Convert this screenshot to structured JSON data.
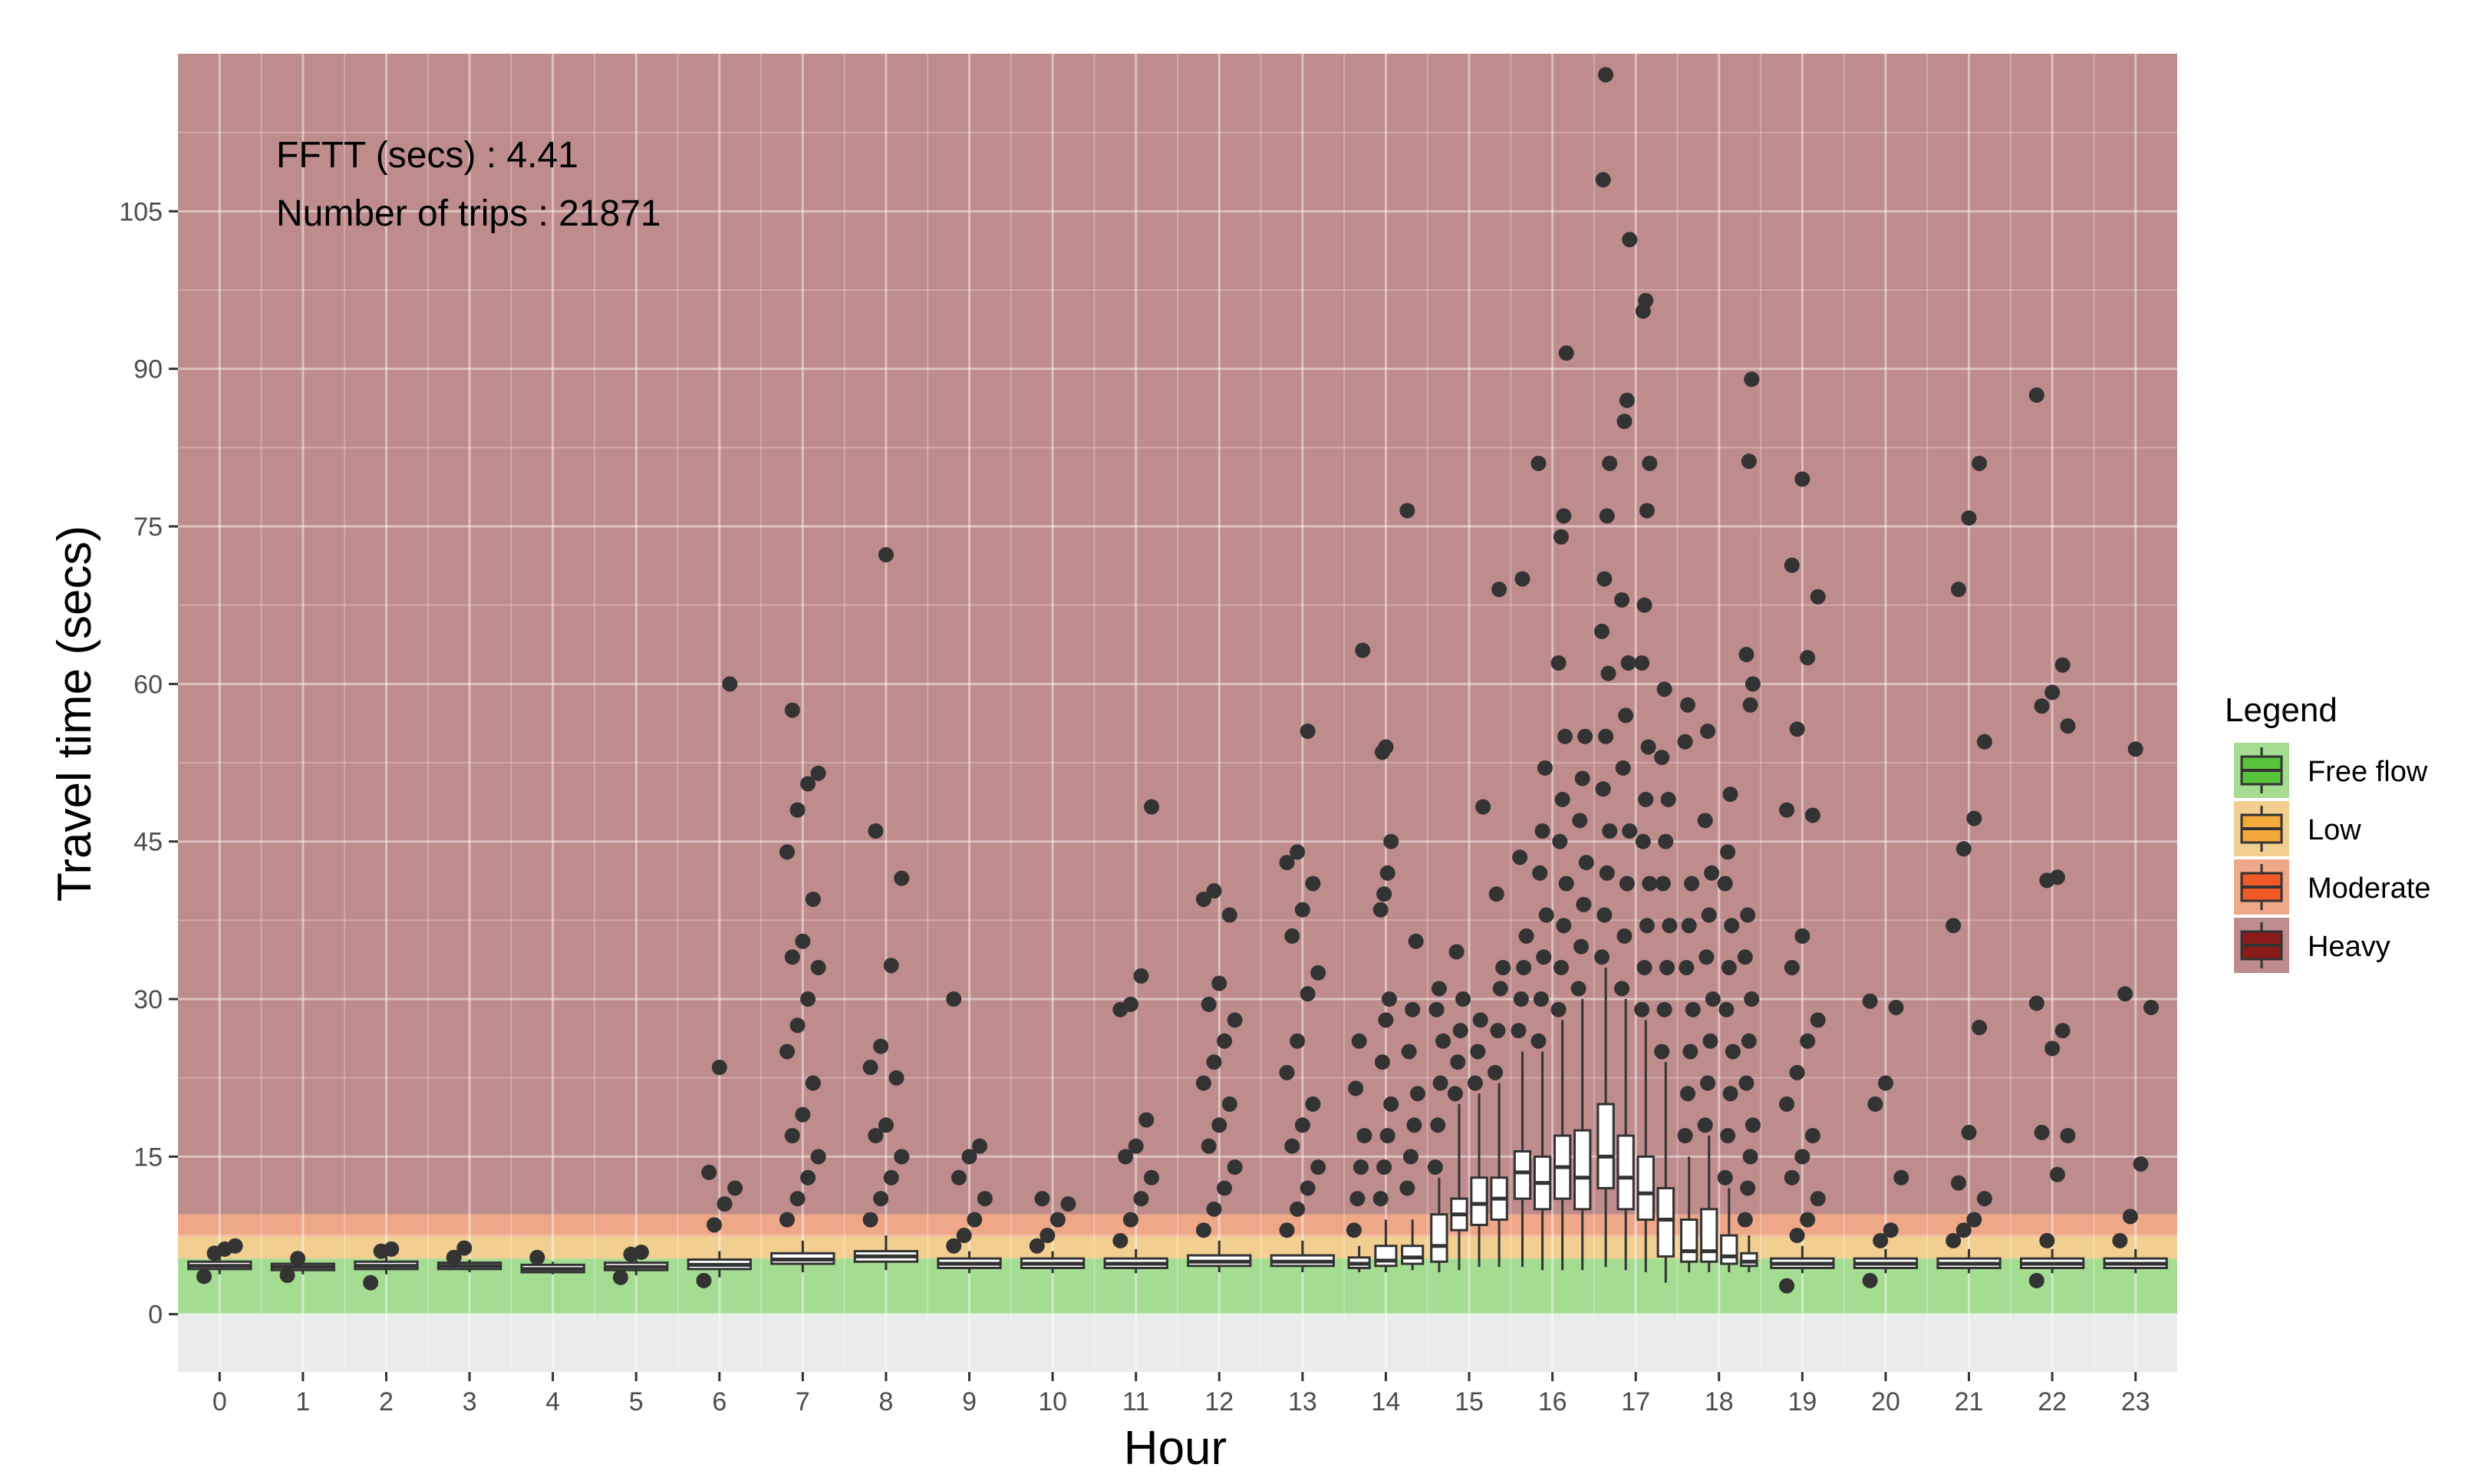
{
  "chart_data": {
    "type": "box",
    "title": "",
    "xlabel": "Hour",
    "ylabel": "Travel time (secs)",
    "ylim": [
      -5.5,
      120
    ],
    "yticks": [
      0,
      15,
      30,
      45,
      60,
      75,
      90,
      105
    ],
    "categories": [
      "0",
      "1",
      "2",
      "3",
      "4",
      "5",
      "6",
      "7",
      "8",
      "9",
      "10",
      "11",
      "12",
      "13",
      "14",
      "15",
      "16",
      "17",
      "18",
      "19",
      "20",
      "21",
      "22",
      "23"
    ],
    "annotations": [
      "FFTT (secs) : 4.41",
      "Number of trips : 21871"
    ],
    "grid": true,
    "legend": {
      "title": "Legend",
      "position": "right",
      "items": [
        {
          "label": "Free flow",
          "color": "#57c43b"
        },
        {
          "label": "Low",
          "color": "#f5a93a"
        },
        {
          "label": "Moderate",
          "color": "#f05a28"
        },
        {
          "label": "Heavy",
          "color": "#8b1a1a"
        }
      ]
    },
    "bands": [
      {
        "name": "Free flow",
        "from": 0,
        "to": 5.3,
        "color": "#a4dc92"
      },
      {
        "name": "Low",
        "from": 5.3,
        "to": 7.4,
        "color": "#f2cf90"
      },
      {
        "name": "Moderate",
        "from": 7.4,
        "to": 9.5,
        "color": "#eea888"
      },
      {
        "name": "Heavy",
        "from": 9.5,
        "to": 120,
        "color": "#bf8c8c"
      }
    ],
    "below_zero_color": "#ebebeb",
    "boxes": [
      {
        "hour": 0,
        "subs": [
          {
            "q1": 4.3,
            "med": 4.6,
            "q3": 5.0,
            "lo": 3.8,
            "hi": 5.6,
            "out": [
              3.6,
              5.8,
              6.2,
              6.5
            ]
          }
        ]
      },
      {
        "hour": 1,
        "subs": [
          {
            "q1": 4.2,
            "med": 4.5,
            "q3": 4.8,
            "lo": 3.8,
            "hi": 5.2,
            "out": [
              3.7,
              5.3
            ]
          }
        ]
      },
      {
        "hour": 2,
        "subs": [
          {
            "q1": 4.3,
            "med": 4.6,
            "q3": 5.0,
            "lo": 3.8,
            "hi": 5.6,
            "out": [
              3.0,
              6.0,
              6.2
            ]
          }
        ]
      },
      {
        "hour": 3,
        "subs": [
          {
            "q1": 4.3,
            "med": 4.6,
            "q3": 4.9,
            "lo": 4.0,
            "hi": 5.2,
            "out": [
              5.4,
              6.3
            ]
          }
        ]
      },
      {
        "hour": 4,
        "subs": [
          {
            "q1": 4.0,
            "med": 4.3,
            "q3": 4.7,
            "lo": 3.8,
            "hi": 5.0,
            "out": [
              5.4
            ]
          }
        ]
      },
      {
        "hour": 5,
        "subs": [
          {
            "q1": 4.2,
            "med": 4.5,
            "q3": 4.9,
            "lo": 3.7,
            "hi": 5.4,
            "out": [
              3.5,
              5.7,
              5.9
            ]
          }
        ]
      },
      {
        "hour": 6,
        "subs": [
          {
            "q1": 4.3,
            "med": 4.7,
            "q3": 5.2,
            "lo": 3.5,
            "hi": 6.0,
            "out": [
              3.2,
              8.5,
              10.5,
              12.0,
              13.5,
              23.5,
              60.0
            ]
          }
        ]
      },
      {
        "hour": 7,
        "subs": [
          {
            "q1": 4.8,
            "med": 5.2,
            "q3": 5.8,
            "lo": 4.0,
            "hi": 7.0,
            "out": [
              9.0,
              11.0,
              13.0,
              15.0,
              17.0,
              19.0,
              22.0,
              25.0,
              27.5,
              30.0,
              33.0,
              34.0,
              35.5,
              39.5,
              44.0,
              48.0,
              50.5,
              51.5,
              57.5
            ]
          }
        ]
      },
      {
        "hour": 8,
        "subs": [
          {
            "q1": 5.0,
            "med": 5.5,
            "q3": 6.0,
            "lo": 4.2,
            "hi": 7.5,
            "out": [
              9.0,
              11.0,
              13.0,
              15.0,
              17.0,
              18.0,
              22.5,
              23.5,
              25.5,
              33.2,
              41.5,
              46.0,
              72.3
            ]
          }
        ]
      },
      {
        "hour": 9,
        "subs": [
          {
            "q1": 4.4,
            "med": 4.8,
            "q3": 5.3,
            "lo": 3.9,
            "hi": 6.0,
            "out": [
              6.5,
              7.5,
              9.0,
              11.0,
              13.0,
              15.0,
              16.0,
              30.0
            ]
          }
        ]
      },
      {
        "hour": 10,
        "subs": [
          {
            "q1": 4.4,
            "med": 4.8,
            "q3": 5.3,
            "lo": 3.9,
            "hi": 6.0,
            "out": [
              6.5,
              7.5,
              9.0,
              10.5,
              11.0
            ]
          }
        ]
      },
      {
        "hour": 11,
        "subs": [
          {
            "q1": 4.4,
            "med": 4.8,
            "q3": 5.3,
            "lo": 3.9,
            "hi": 6.2,
            "out": [
              7.0,
              9.0,
              11.0,
              13.0,
              15.0,
              16.0,
              18.5,
              29.0,
              29.5,
              32.2,
              48.3
            ]
          }
        ]
      },
      {
        "hour": 12,
        "subs": [
          {
            "q1": 4.6,
            "med": 5.0,
            "q3": 5.6,
            "lo": 4.0,
            "hi": 7.0,
            "out": [
              8.0,
              10.0,
              12.0,
              14.0,
              16.0,
              18.0,
              20.0,
              22.0,
              24.0,
              26.0,
              28.0,
              29.5,
              31.5,
              38.0,
              39.5,
              40.3
            ]
          }
        ]
      },
      {
        "hour": 13,
        "subs": [
          {
            "q1": 4.6,
            "med": 5.0,
            "q3": 5.6,
            "lo": 4.0,
            "hi": 7.0,
            "out": [
              8.0,
              10.0,
              12.0,
              14.0,
              16.0,
              18.0,
              20.0,
              23.0,
              26.0,
              30.5,
              32.5,
              36.0,
              38.5,
              41.0,
              43.0,
              44.0,
              55.5
            ]
          }
        ]
      },
      {
        "hour": 14,
        "subs": [
          {
            "q1": 4.4,
            "med": 4.8,
            "q3": 5.4,
            "lo": 4.0,
            "hi": 6.5,
            "out": [
              8.0,
              11.0,
              14.0,
              17.0,
              21.5,
              26.0,
              63.2
            ]
          },
          {
            "q1": 4.6,
            "med": 5.1,
            "q3": 6.5,
            "lo": 4.0,
            "hi": 9.0,
            "out": [
              11.0,
              14.0,
              17.0,
              20.0,
              24.0,
              28.0,
              30.0,
              38.5,
              40.0,
              42.0,
              45.0,
              53.5,
              54.0
            ]
          },
          {
            "q1": 4.8,
            "med": 5.4,
            "q3": 6.5,
            "lo": 4.2,
            "hi": 9.0,
            "out": [
              12.0,
              15.0,
              18.0,
              21.0,
              25.0,
              29.0,
              35.5,
              76.5
            ]
          }
        ]
      },
      {
        "hour": 15,
        "subs": [
          {
            "q1": 5.0,
            "med": 6.5,
            "q3": 9.5,
            "lo": 4.0,
            "hi": 13.0,
            "out": [
              14.0,
              18.0,
              22.0,
              26.0,
              29.0,
              31.0
            ]
          },
          {
            "q1": 8.0,
            "med": 9.5,
            "q3": 11.0,
            "lo": 4.2,
            "hi": 20.0,
            "out": [
              21.0,
              24.0,
              27.0,
              30.0,
              34.5
            ]
          },
          {
            "q1": 8.5,
            "med": 10.5,
            "q3": 13.0,
            "lo": 4.5,
            "hi": 21.0,
            "out": [
              22.0,
              25.0,
              28.0,
              48.3
            ]
          },
          {
            "q1": 9.0,
            "med": 11.0,
            "q3": 13.0,
            "lo": 4.5,
            "hi": 22.0,
            "out": [
              23.0,
              27.0,
              31.0,
              33.0,
              40.0,
              69.0
            ]
          }
        ]
      },
      {
        "hour": 16,
        "subs": [
          {
            "q1": 11.0,
            "med": 13.5,
            "q3": 15.5,
            "lo": 4.5,
            "hi": 25.0,
            "out": [
              27.0,
              30.0,
              33.0,
              36.0,
              43.5,
              70.0
            ]
          },
          {
            "q1": 10.0,
            "med": 12.5,
            "q3": 15.0,
            "lo": 4.2,
            "hi": 25.0,
            "out": [
              26.0,
              30.0,
              34.0,
              38.0,
              42.0,
              46.0,
              52.0,
              81.0
            ]
          },
          {
            "q1": 11.0,
            "med": 14.0,
            "q3": 17.0,
            "lo": 4.2,
            "hi": 28.0,
            "out": [
              29.0,
              33.0,
              37.0,
              41.0,
              45.0,
              49.0,
              55.0,
              62.0,
              74.0,
              76.0,
              91.5
            ]
          },
          {
            "q1": 10.0,
            "med": 13.0,
            "q3": 17.5,
            "lo": 4.2,
            "hi": 30.0,
            "out": [
              31.0,
              35.0,
              39.0,
              43.0,
              47.0,
              51.0,
              55.0
            ]
          }
        ]
      },
      {
        "hour": 17,
        "subs": [
          {
            "q1": 12.0,
            "med": 15.0,
            "q3": 20.0,
            "lo": 4.5,
            "hi": 33.0,
            "out": [
              34.0,
              38.0,
              42.0,
              46.0,
              50.0,
              55.0,
              61.0,
              65.0,
              70.0,
              76.0,
              81.0,
              108.0,
              118.0
            ]
          },
          {
            "q1": 10.0,
            "med": 13.0,
            "q3": 17.0,
            "lo": 4.2,
            "hi": 30.0,
            "out": [
              31.0,
              36.0,
              41.0,
              46.0,
              52.0,
              57.0,
              62.0,
              68.0,
              85.0,
              87.0,
              102.3
            ]
          },
          {
            "q1": 9.0,
            "med": 11.5,
            "q3": 15.0,
            "lo": 4.0,
            "hi": 28.0,
            "out": [
              29.0,
              33.0,
              37.0,
              41.0,
              45.0,
              49.0,
              54.0,
              62.0,
              67.5,
              76.5,
              81.0,
              95.5,
              96.5
            ]
          },
          {
            "q1": 5.5,
            "med": 9.0,
            "q3": 12.0,
            "lo": 3.0,
            "hi": 24.0,
            "out": [
              25.0,
              29.0,
              33.0,
              37.0,
              41.0,
              45.0,
              49.0,
              53.0,
              59.5
            ]
          }
        ]
      },
      {
        "hour": 18,
        "subs": [
          {
            "q1": 5.0,
            "med": 6.0,
            "q3": 9.0,
            "lo": 4.0,
            "hi": 15.0,
            "out": [
              17.0,
              21.0,
              25.0,
              29.0,
              33.0,
              37.0,
              41.0,
              54.5,
              58.0
            ]
          },
          {
            "q1": 5.0,
            "med": 6.0,
            "q3": 10.0,
            "lo": 4.0,
            "hi": 17.0,
            "out": [
              18.0,
              22.0,
              26.0,
              30.0,
              34.0,
              38.0,
              42.0,
              47.0,
              55.5
            ]
          },
          {
            "q1": 4.8,
            "med": 5.5,
            "q3": 7.5,
            "lo": 4.0,
            "hi": 12.0,
            "out": [
              13.0,
              17.0,
              21.0,
              25.0,
              29.0,
              33.0,
              37.0,
              41.0,
              44.0,
              49.5
            ]
          },
          {
            "q1": 4.6,
            "med": 5.0,
            "q3": 5.8,
            "lo": 4.0,
            "hi": 7.5,
            "out": [
              9.0,
              12.0,
              15.0,
              18.0,
              22.0,
              26.0,
              30.0,
              34.0,
              38.0,
              58.0,
              60.0,
              62.8,
              81.2,
              89.0
            ]
          }
        ]
      },
      {
        "hour": 19,
        "subs": [
          {
            "q1": 4.4,
            "med": 4.8,
            "q3": 5.3,
            "lo": 3.9,
            "hi": 6.5,
            "out": [
              2.7,
              7.5,
              9.0,
              11.0,
              13.0,
              15.0,
              17.0,
              20.0,
              23.0,
              26.0,
              28.0,
              33.0,
              36.0,
              47.5,
              48.0,
              55.7,
              62.5,
              68.3,
              71.3,
              79.5
            ]
          }
        ]
      },
      {
        "hour": 20,
        "subs": [
          {
            "q1": 4.4,
            "med": 4.8,
            "q3": 5.3,
            "lo": 3.9,
            "hi": 6.2,
            "out": [
              3.2,
              7.0,
              8.0,
              13.0,
              20.0,
              22.0,
              29.2,
              29.8
            ]
          }
        ]
      },
      {
        "hour": 21,
        "subs": [
          {
            "q1": 4.4,
            "med": 4.8,
            "q3": 5.3,
            "lo": 3.9,
            "hi": 6.2,
            "out": [
              7.0,
              8.0,
              9.0,
              11.0,
              12.5,
              17.3,
              27.3,
              37.0,
              44.3,
              47.2,
              54.5,
              69.0,
              75.8,
              81.0
            ]
          }
        ]
      },
      {
        "hour": 22,
        "subs": [
          {
            "q1": 4.4,
            "med": 4.8,
            "q3": 5.3,
            "lo": 3.9,
            "hi": 6.2,
            "out": [
              3.2,
              7.0,
              13.3,
              17.0,
              17.3,
              25.3,
              27.0,
              29.6,
              41.3,
              41.6,
              56.0,
              57.9,
              59.2,
              61.8,
              87.5
            ]
          }
        ]
      },
      {
        "hour": 23,
        "subs": [
          {
            "q1": 4.4,
            "med": 4.8,
            "q3": 5.3,
            "lo": 3.9,
            "hi": 6.2,
            "out": [
              7.0,
              9.3,
              14.3,
              29.2,
              30.5,
              53.8
            ]
          }
        ]
      }
    ]
  }
}
